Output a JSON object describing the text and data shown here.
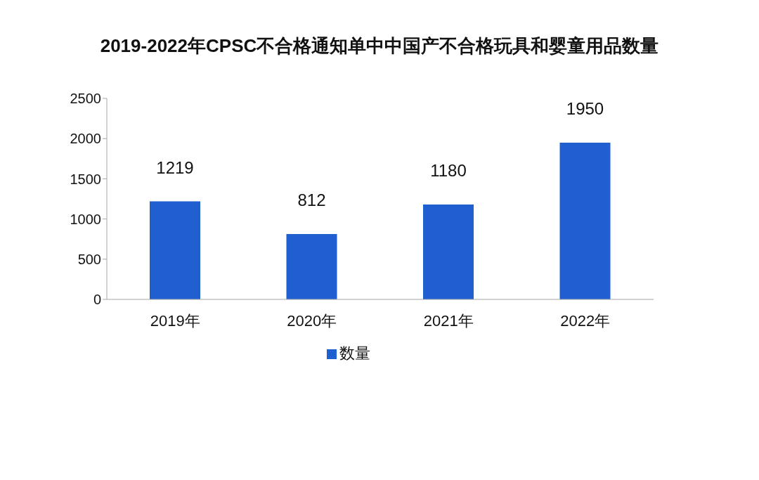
{
  "chart_data": {
    "type": "bar",
    "title": "2019-2022年CPSC不合格通知单中中国产不合格玩具和婴童用品数量",
    "categories": [
      "2019年",
      "2020年",
      "2021年",
      "2022年"
    ],
    "series": [
      {
        "name": "数量",
        "color": "#1f5fd0",
        "values": [
          1219,
          812,
          1180,
          1950
        ]
      }
    ],
    "ylim": [
      0,
      2500
    ],
    "yticks": [
      0,
      500,
      1000,
      1500,
      2000,
      2500
    ],
    "data_labels": true,
    "legend": "bottom"
  }
}
